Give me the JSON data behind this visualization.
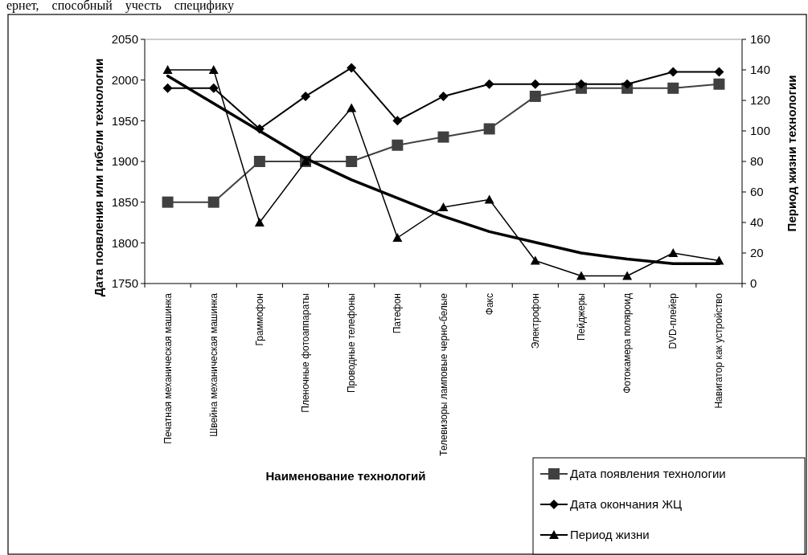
{
  "chart_data": {
    "type": "line",
    "annotations": [
      "ернет,    способный    учесть    специфику"
    ],
    "xlabel": "Наименование технологий",
    "ylabel": "Дата появления или гибели технологии",
    "y2label": "Период жизни технологии",
    "categories": [
      "Печатная механическая машинка",
      "Швейна механическая машинка",
      "Граммофон",
      "Пленочные фотоаппараты",
      "Проводные телефоны",
      "Патефон",
      "Телевизоры ламповые черно-белые",
      "Факс",
      "Электрофон",
      "Пейджеры",
      "Фотокамера поляроид",
      "DVD-плейер",
      "Навигатор как устройство"
    ],
    "series": [
      {
        "name": "Дата появления технологии",
        "color": "#404040",
        "marker": "square",
        "values": [
          1850,
          1850,
          1900,
          1900,
          1900,
          1920,
          1930,
          1940,
          1980,
          1990,
          1990,
          1990,
          1995
        ]
      },
      {
        "name": "Дата окончания ЖЦ",
        "color": "#000000",
        "marker": "diamond",
        "values": [
          1990,
          1990,
          1940,
          1980,
          2015,
          1950,
          1980,
          1995,
          1995,
          1995,
          1995,
          2010,
          2010
        ]
      },
      {
        "name": "Период жизни",
        "color": "#000000",
        "marker": "triangle",
        "axis": "y2",
        "values": [
          140,
          140,
          40,
          80,
          115,
          30,
          50,
          55,
          15,
          5,
          5,
          20,
          15
        ]
      },
      {
        "color": "#000000",
        "marker": "none",
        "axis": "y2",
        "values": [
          136,
          118,
          100,
          82,
          68,
          56,
          44,
          34,
          27,
          20,
          16,
          13,
          13
        ]
      }
    ],
    "ylim": [
      1750,
      2050
    ],
    "yticks": [
      1750,
      1800,
      1850,
      1900,
      1950,
      2000,
      2050
    ],
    "y2lim": [
      0,
      160
    ],
    "y2ticks": [
      0,
      20,
      40,
      60,
      80,
      100,
      120,
      140,
      160
    ],
    "grid": false,
    "legend": "bottom right"
  }
}
